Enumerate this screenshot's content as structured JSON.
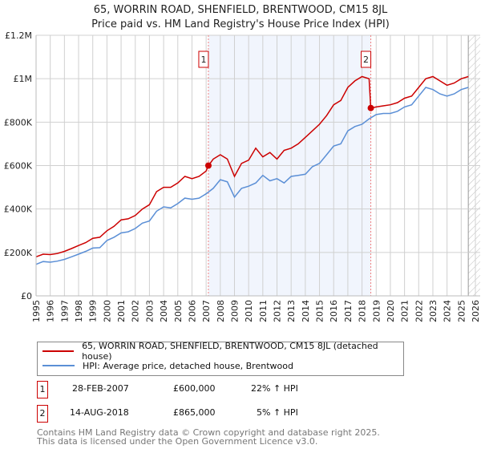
{
  "chart_data": {
    "type": "line",
    "title": "65, WORRIN ROAD, SHENFIELD, BRENTWOOD, CM15 8JL",
    "subtitle": "Price paid vs. HM Land Registry's House Price Index (HPI)",
    "xlim": [
      1995,
      2026
    ],
    "ylim": [
      0,
      1200000
    ],
    "x_ticks": [
      "1995",
      "1996",
      "1997",
      "1998",
      "1999",
      "2000",
      "2001",
      "2002",
      "2003",
      "2004",
      "2005",
      "2006",
      "2007",
      "2008",
      "2009",
      "2010",
      "2011",
      "2012",
      "2013",
      "2014",
      "2015",
      "2016",
      "2017",
      "2018",
      "2019",
      "2020",
      "2021",
      "2022",
      "2023",
      "2024",
      "2025",
      "2026"
    ],
    "y_ticks": [
      {
        "v": 0,
        "label": "£0"
      },
      {
        "v": 200000,
        "label": "£200K"
      },
      {
        "v": 400000,
        "label": "£400K"
      },
      {
        "v": 600000,
        "label": "£600K"
      },
      {
        "v": 800000,
        "label": "£800K"
      },
      {
        "v": 1000000,
        "label": "£1M"
      },
      {
        "v": 1200000,
        "label": "£1.2M"
      }
    ],
    "grid": true,
    "shaded_range": [
      2007.16,
      2018.62
    ],
    "forecast_hatch_from": 2025.5,
    "series": [
      {
        "name": "65, WORRIN ROAD, SHENFIELD, BRENTWOOD, CM15 8JL (detached house)",
        "color": "#cc0000",
        "x": [
          1995,
          1995.5,
          1996,
          1996.5,
          1997,
          1997.5,
          1998,
          1998.5,
          1999,
          1999.5,
          2000,
          2000.5,
          2001,
          2001.5,
          2002,
          2002.5,
          2003,
          2003.5,
          2004,
          2004.5,
          2005,
          2005.5,
          2006,
          2006.5,
          2007,
          2007.16,
          2007.5,
          2008,
          2008.5,
          2009,
          2009.5,
          2010,
          2010.5,
          2011,
          2011.5,
          2012,
          2012.5,
          2013,
          2013.5,
          2014,
          2014.5,
          2015,
          2015.5,
          2016,
          2016.5,
          2017,
          2017.5,
          2018,
          2018.5,
          2018.62,
          2019,
          2019.5,
          2020,
          2020.5,
          2021,
          2021.5,
          2022,
          2022.5,
          2023,
          2023.5,
          2024,
          2024.5,
          2025,
          2025.5
        ],
        "y": [
          180000,
          192000,
          190000,
          195000,
          205000,
          218000,
          232000,
          245000,
          265000,
          270000,
          300000,
          320000,
          350000,
          355000,
          370000,
          400000,
          420000,
          480000,
          500000,
          500000,
          520000,
          550000,
          540000,
          550000,
          575000,
          600000,
          630000,
          650000,
          630000,
          550000,
          610000,
          625000,
          680000,
          640000,
          660000,
          630000,
          670000,
          680000,
          700000,
          730000,
          760000,
          790000,
          830000,
          880000,
          900000,
          960000,
          990000,
          1010000,
          1000000,
          865000,
          870000,
          875000,
          880000,
          890000,
          910000,
          920000,
          960000,
          1000000,
          1010000,
          990000,
          970000,
          980000,
          1000000,
          1010000
        ]
      },
      {
        "name": "HPI: Average price, detached house, Brentwood",
        "color": "#5b8fd6",
        "x": [
          1995,
          1995.5,
          1996,
          1996.5,
          1997,
          1997.5,
          1998,
          1998.5,
          1999,
          1999.5,
          2000,
          2000.5,
          2001,
          2001.5,
          2002,
          2002.5,
          2003,
          2003.5,
          2004,
          2004.5,
          2005,
          2005.5,
          2006,
          2006.5,
          2007,
          2007.5,
          2008,
          2008.5,
          2009,
          2009.5,
          2010,
          2010.5,
          2011,
          2011.5,
          2012,
          2012.5,
          2013,
          2013.5,
          2014,
          2014.5,
          2015,
          2015.5,
          2016,
          2016.5,
          2017,
          2017.5,
          2018,
          2018.5,
          2019,
          2019.5,
          2020,
          2020.5,
          2021,
          2021.5,
          2022,
          2022.5,
          2023,
          2023.5,
          2024,
          2024.5,
          2025,
          2025.5
        ],
        "y": [
          145000,
          158000,
          155000,
          160000,
          168000,
          180000,
          192000,
          205000,
          220000,
          222000,
          255000,
          270000,
          290000,
          295000,
          310000,
          335000,
          345000,
          390000,
          410000,
          405000,
          425000,
          450000,
          445000,
          450000,
          470000,
          495000,
          535000,
          525000,
          455000,
          495000,
          505000,
          520000,
          555000,
          530000,
          540000,
          520000,
          550000,
          555000,
          560000,
          595000,
          610000,
          650000,
          690000,
          700000,
          760000,
          780000,
          790000,
          815000,
          835000,
          840000,
          840000,
          850000,
          870000,
          880000,
          920000,
          960000,
          950000,
          930000,
          920000,
          930000,
          950000,
          960000
        ]
      }
    ],
    "sales": [
      {
        "id": "1",
        "x": 2007.16,
        "price": 600000
      },
      {
        "id": "2",
        "x": 2018.62,
        "price": 865000
      }
    ]
  },
  "legend": {
    "property": "65, WORRIN ROAD, SHENFIELD, BRENTWOOD, CM15 8JL (detached house)",
    "hpi": "HPI: Average price, detached house, Brentwood"
  },
  "transactions": [
    {
      "num": "1",
      "date": "28-FEB-2007",
      "price": "£600,000",
      "hpi": "22% ↑ HPI"
    },
    {
      "num": "2",
      "date": "14-AUG-2018",
      "price": "£865,000",
      "hpi": "5% ↑ HPI"
    }
  ],
  "footer": {
    "line1": "Contains HM Land Registry data © Crown copyright and database right 2025.",
    "line2": "This data is licensed under the Open Government Licence v3.0."
  }
}
